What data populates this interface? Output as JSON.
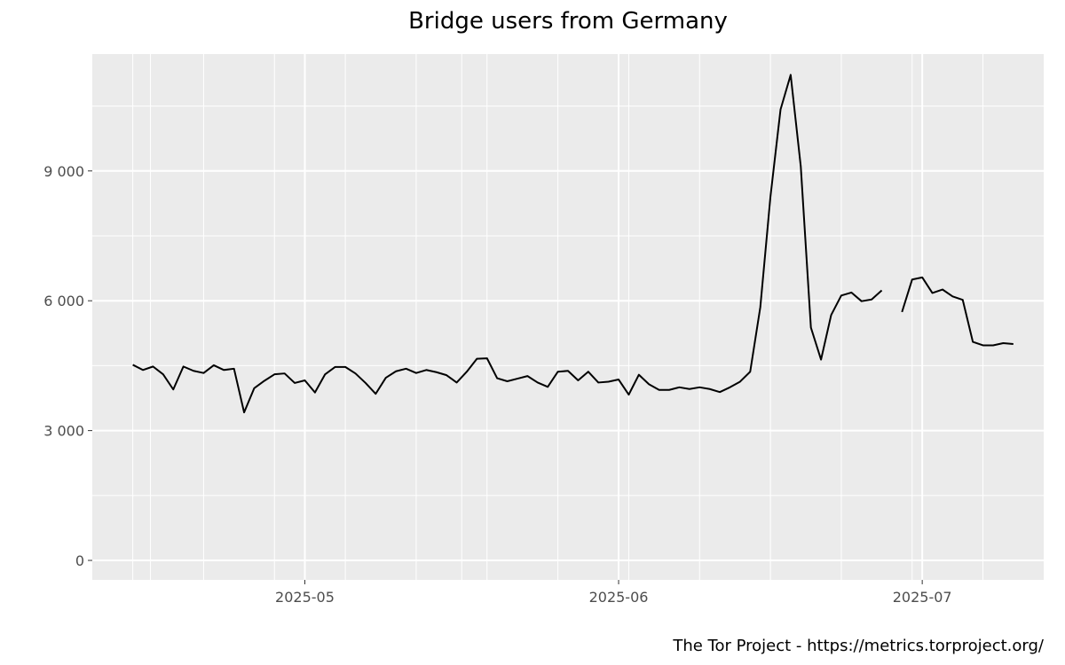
{
  "chart_data": {
    "type": "line",
    "title": "Bridge users from Germany",
    "xlabel": "",
    "ylabel": "",
    "x_start": "2025-04-14",
    "x_range": [
      "2025-04-10",
      "2025-07-13"
    ],
    "ylim": [
      -450,
      11700
    ],
    "y_ticks": [
      0,
      3000,
      6000,
      9000
    ],
    "y_tick_labels": [
      "0",
      "3 000",
      "6 000",
      "9 000"
    ],
    "x_ticks": [
      "2025-05-01",
      "2025-06-01",
      "2025-07-01"
    ],
    "x_tick_labels": [
      "2025-05",
      "2025-06",
      "2025-07"
    ],
    "grid": true,
    "panel_background": "#ebebeb",
    "gridline_color": "#ffffff",
    "line_color": "#000000",
    "series": [
      {
        "values": [
          4520,
          4400,
          4480,
          4300,
          3950,
          4480,
          4380,
          4330,
          4510,
          4400,
          4430,
          3420,
          3980,
          4150,
          4300,
          4320,
          4100,
          4160,
          3880,
          4300,
          4470,
          4470,
          4320,
          4100,
          3850,
          4220,
          4370,
          4430,
          4330,
          4400,
          4350,
          4280,
          4110,
          4360,
          4660,
          4670,
          4210,
          4140,
          4200,
          4260,
          4110,
          4010,
          4360,
          4380,
          4160,
          4360,
          4110,
          4130,
          4180,
          3830,
          4290,
          4070,
          3940,
          3940,
          4000,
          3960,
          4000,
          3960,
          3890,
          4000,
          4130,
          4360,
          5850,
          8400,
          10420,
          11220,
          9100,
          5380,
          4640,
          5670,
          6120,
          6190,
          5990,
          6030,
          6240,
          null,
          5740,
          6490,
          6540,
          6180,
          6260,
          6100,
          6020,
          5050,
          4970,
          4970,
          5020,
          5000
        ]
      }
    ],
    "credit": "The Tor Project - https://metrics.torproject.org/"
  }
}
